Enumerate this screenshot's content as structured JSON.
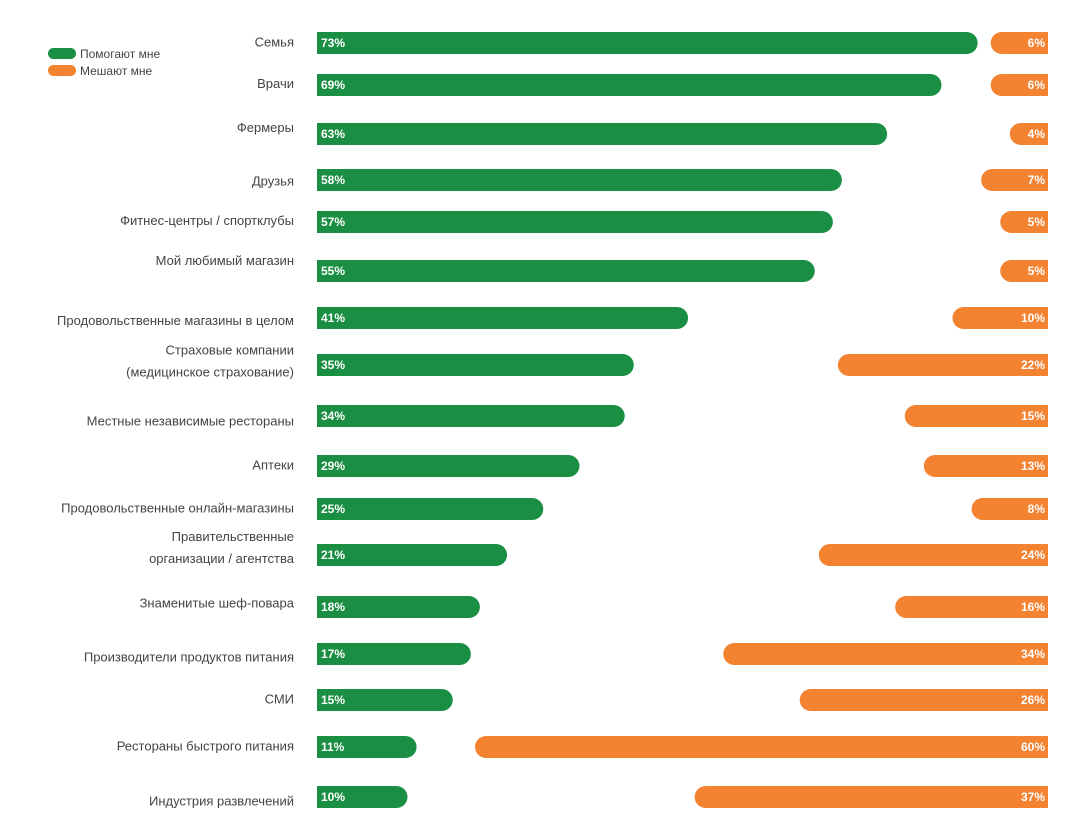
{
  "colors": {
    "help": "#1a8e42",
    "hinder": "#f38231"
  },
  "chart_data": {
    "type": "bar",
    "orientation": "horizontal",
    "title": "",
    "xlabel": "",
    "ylabel": "",
    "legend_position": "top-left",
    "grid": false,
    "value_format": "percent",
    "categories": [
      [
        "Семья"
      ],
      [
        "Врачи"
      ],
      [
        "Фермеры"
      ],
      [
        "Друзья"
      ],
      [
        "Фитнес-центры / спортклубы"
      ],
      [
        "Мой любимый магазин"
      ],
      [
        "Продовольственные магазины в целом"
      ],
      [
        "Страховые компании",
        "(медицинское страхование)"
      ],
      [
        "Местные независимые рестораны"
      ],
      [
        "Аптеки"
      ],
      [
        "Продовольственные онлайн-магазины"
      ],
      [
        "Правительственные",
        "организации / агентства"
      ],
      [
        "Знаменитые шеф-повара"
      ],
      [
        "Производители продуктов питания"
      ],
      [
        "СМИ"
      ],
      [
        "Рестораны быстрого питания"
      ],
      [
        "Индустрия развлечений"
      ]
    ],
    "series": [
      {
        "name": "Помогают мне",
        "values": [
          73,
          69,
          63,
          58,
          57,
          55,
          41,
          35,
          34,
          29,
          25,
          21,
          18,
          17,
          15,
          11,
          10
        ]
      },
      {
        "name": "Мешают мне",
        "values": [
          6,
          6,
          4,
          7,
          5,
          5,
          10,
          22,
          15,
          13,
          8,
          24,
          16,
          34,
          26,
          60,
          37
        ]
      }
    ]
  }
}
